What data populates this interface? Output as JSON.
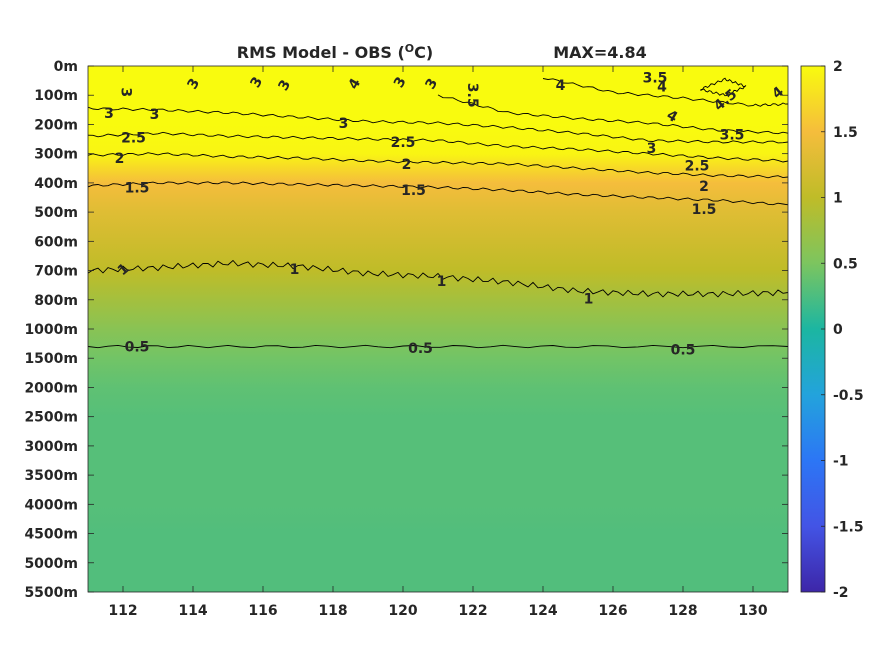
{
  "chart_data": {
    "type": "heatmap",
    "title": "RMS Model - OBS (°C)",
    "title_main": "RMS Model - OBS (",
    "title_unit_superscript": "O",
    "title_unit_tail": "C)",
    "max_label": "MAX=4.84",
    "xlabel": "",
    "ylabel": "",
    "x_ticks": [
      112,
      114,
      116,
      118,
      120,
      122,
      124,
      126,
      128,
      130
    ],
    "x_tick_labels": [
      "112",
      "114",
      "116",
      "118",
      "120",
      "122",
      "124",
      "126",
      "128",
      "130"
    ],
    "xlim": [
      111,
      131
    ],
    "y_tick_labels": [
      "0m",
      "100m",
      "200m",
      "300m",
      "400m",
      "500m",
      "600m",
      "700m",
      "800m",
      "1000m",
      "1500m",
      "2000m",
      "2500m",
      "3000m",
      "3500m",
      "4000m",
      "4500m",
      "5000m",
      "5500m"
    ],
    "colorbar": {
      "ticks": [
        2,
        1.5,
        1,
        0.5,
        0,
        -0.5,
        -1,
        -1.5,
        -2
      ],
      "tick_labels": [
        "2",
        "1.5",
        "1",
        "0.5",
        "0",
        "-0.5",
        "-1",
        "-1.5",
        "-2"
      ],
      "clim": [
        -2,
        2
      ],
      "colormap": "parula"
    },
    "depth_profile_rms": [
      {
        "depth": "0m",
        "value": 2.0
      },
      {
        "depth": "100m",
        "value": 2.0
      },
      {
        "depth": "200m",
        "value": 2.0
      },
      {
        "depth": "300m",
        "value": 1.95
      },
      {
        "depth": "400m",
        "value": 1.5
      },
      {
        "depth": "500m",
        "value": 1.3
      },
      {
        "depth": "600m",
        "value": 1.15
      },
      {
        "depth": "700m",
        "value": 1.0
      },
      {
        "depth": "800m",
        "value": 0.8
      },
      {
        "depth": "1000m",
        "value": 0.6
      },
      {
        "depth": "1500m",
        "value": 0.45
      },
      {
        "depth": "2000m",
        "value": 0.35
      },
      {
        "depth": "2500m",
        "value": 0.3
      },
      {
        "depth": "3000m",
        "value": 0.3
      },
      {
        "depth": "3500m",
        "value": 0.3
      },
      {
        "depth": "4000m",
        "value": 0.3
      },
      {
        "depth": "4500m",
        "value": 0.28
      },
      {
        "depth": "5000m",
        "value": 0.28
      },
      {
        "depth": "5500m",
        "value": 0.28
      }
    ],
    "contour_levels": [
      0.5,
      1,
      1.5,
      2,
      2.5,
      3,
      3.5,
      4,
      4.5
    ],
    "contour_lines": [
      {
        "level": 0.5,
        "points": [
          [
            111,
            9.6
          ],
          [
            115,
            9.6
          ],
          [
            120,
            9.6
          ],
          [
            125,
            9.6
          ],
          [
            131,
            9.6
          ]
        ]
      },
      {
        "level": 1,
        "points": [
          [
            111,
            7.0
          ],
          [
            113,
            6.9
          ],
          [
            115,
            6.75
          ],
          [
            117,
            6.85
          ],
          [
            119,
            7.1
          ],
          [
            121,
            7.2
          ],
          [
            123,
            7.4
          ],
          [
            125,
            7.7
          ],
          [
            127,
            7.8
          ],
          [
            129,
            7.8
          ],
          [
            131,
            7.75
          ]
        ]
      },
      {
        "level": 1.5,
        "points": [
          [
            111,
            4.1
          ],
          [
            113,
            4.0
          ],
          [
            115,
            4.0
          ],
          [
            117,
            4.05
          ],
          [
            119,
            4.1
          ],
          [
            121,
            4.15
          ],
          [
            123,
            4.25
          ],
          [
            125,
            4.4
          ],
          [
            127,
            4.5
          ],
          [
            129,
            4.6
          ],
          [
            131,
            4.75
          ]
        ]
      },
      {
        "level": 2,
        "points": [
          [
            111,
            3.05
          ],
          [
            113,
            3.0
          ],
          [
            115,
            3.1
          ],
          [
            117,
            3.15
          ],
          [
            119,
            3.25
          ],
          [
            121,
            3.3
          ],
          [
            123,
            3.35
          ],
          [
            125,
            3.5
          ],
          [
            127,
            3.65
          ],
          [
            129,
            3.75
          ],
          [
            131,
            3.8
          ]
        ]
      },
      {
        "level": 2.5,
        "points": [
          [
            111,
            2.4
          ],
          [
            113,
            2.3
          ],
          [
            115,
            2.4
          ],
          [
            117,
            2.45
          ],
          [
            119,
            2.5
          ],
          [
            121,
            2.55
          ],
          [
            123,
            2.75
          ],
          [
            125,
            2.85
          ],
          [
            127,
            3.0
          ],
          [
            129,
            3.15
          ],
          [
            131,
            3.25
          ]
        ]
      },
      {
        "level": 3,
        "points": [
          [
            111,
            1.45
          ],
          [
            113,
            1.5
          ],
          [
            115,
            1.6
          ],
          [
            117,
            1.75
          ],
          [
            119,
            1.9
          ],
          [
            121,
            1.95
          ],
          [
            123,
            2.1
          ],
          [
            125,
            2.3
          ],
          [
            127,
            2.55
          ],
          [
            129,
            2.6
          ],
          [
            131,
            2.6
          ]
        ]
      },
      {
        "level": 3.5,
        "points": [
          [
            121,
            1.0
          ],
          [
            123,
            1.6
          ],
          [
            125,
            1.8
          ],
          [
            127,
            1.95
          ],
          [
            129,
            2.2
          ],
          [
            131,
            2.3
          ]
        ]
      },
      {
        "level": 4,
        "points": [
          [
            124,
            0.4
          ],
          [
            126,
            0.9
          ],
          [
            128,
            1.1
          ],
          [
            130,
            1.35
          ],
          [
            131,
            1.3
          ]
        ]
      },
      {
        "level": 4.5,
        "points": [
          [
            128.5,
            0.8
          ],
          [
            129.2,
            1.0
          ],
          [
            129.8,
            0.7
          ],
          [
            129.2,
            0.45
          ],
          [
            128.5,
            0.8
          ]
        ]
      }
    ],
    "contour_labels": [
      {
        "text": "0.5",
        "x": 112.4,
        "y": 9.6
      },
      {
        "text": "0.5",
        "x": 120.5,
        "y": 9.65
      },
      {
        "text": "0.5",
        "x": 128.0,
        "y": 9.7
      },
      {
        "text": "1",
        "x": 112.0,
        "y": 6.95,
        "rotate": -40
      },
      {
        "text": "1",
        "x": 116.9,
        "y": 6.95
      },
      {
        "text": "1",
        "x": 121.1,
        "y": 7.35
      },
      {
        "text": "1",
        "x": 125.3,
        "y": 7.95
      },
      {
        "text": "1.5",
        "x": 112.4,
        "y": 4.15
      },
      {
        "text": "1.5",
        "x": 120.3,
        "y": 4.25
      },
      {
        "text": "1.5",
        "x": 128.6,
        "y": 4.9
      },
      {
        "text": "2",
        "x": 111.9,
        "y": 3.15
      },
      {
        "text": "2",
        "x": 120.1,
        "y": 3.35
      },
      {
        "text": "2",
        "x": 128.6,
        "y": 4.1
      },
      {
        "text": "2.5",
        "x": 112.3,
        "y": 2.45
      },
      {
        "text": "2.5",
        "x": 120.0,
        "y": 2.6
      },
      {
        "text": "2.5",
        "x": 128.4,
        "y": 3.4
      },
      {
        "text": "3",
        "x": 111.6,
        "y": 1.6
      },
      {
        "text": "3",
        "x": 112.9,
        "y": 1.65
      },
      {
        "text": "3",
        "x": 118.3,
        "y": 1.95
      },
      {
        "text": "3",
        "x": 127.1,
        "y": 2.8
      },
      {
        "text": "3",
        "x": 112.1,
        "y": 0.9,
        "rotate": 90
      },
      {
        "text": "3",
        "x": 114.0,
        "y": 0.6,
        "rotate": -60
      },
      {
        "text": "3",
        "x": 115.8,
        "y": 0.55,
        "rotate": -60
      },
      {
        "text": "3",
        "x": 116.6,
        "y": 0.65,
        "rotate": -60
      },
      {
        "text": "3",
        "x": 119.9,
        "y": 0.55,
        "rotate": -60
      },
      {
        "text": "3",
        "x": 120.8,
        "y": 0.6,
        "rotate": -60
      },
      {
        "text": "3.5",
        "x": 122.0,
        "y": 1.0,
        "rotate": 90
      },
      {
        "text": "3.5",
        "x": 127.2,
        "y": 0.4
      },
      {
        "text": "3.5",
        "x": 129.4,
        "y": 2.35
      },
      {
        "text": "4",
        "x": 118.6,
        "y": 0.6,
        "rotate": -60
      },
      {
        "text": "4",
        "x": 124.5,
        "y": 0.65
      },
      {
        "text": "4",
        "x": 127.4,
        "y": 0.7
      },
      {
        "text": "4",
        "x": 127.7,
        "y": 1.7,
        "rotate": 30
      },
      {
        "text": "4",
        "x": 130.7,
        "y": 0.9,
        "rotate": -40
      },
      {
        "text": "4.5",
        "x": 129.2,
        "y": 1.15,
        "rotate": -40
      }
    ]
  }
}
